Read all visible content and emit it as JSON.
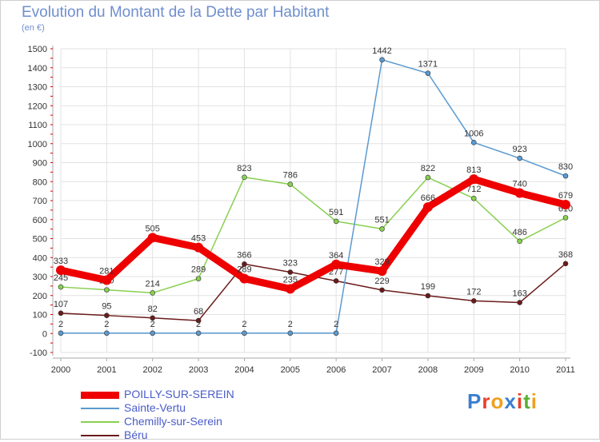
{
  "header": {
    "title": "Evolution du Montant de la Dette par Habitant",
    "subtitle": "(en €)"
  },
  "logo": {
    "text": "Proxiti"
  },
  "colors": {
    "axis": "#aaaaaa",
    "grid": "#e2e2e2",
    "tick_text": "#333333",
    "label_text": "#333333",
    "tick_marks": "#e00000"
  },
  "chart_data": {
    "type": "line",
    "x": [
      "2000",
      "2001",
      "2002",
      "2003",
      "2004",
      "2005",
      "2006",
      "2007",
      "2008",
      "2009",
      "2010",
      "2011"
    ],
    "ylim": [
      -100,
      1500
    ],
    "yticks": [
      -100,
      0,
      100,
      200,
      300,
      400,
      500,
      600,
      700,
      800,
      900,
      1000,
      1100,
      1200,
      1300,
      1400,
      1500
    ],
    "grid": true,
    "legend_position": "bottom-left",
    "series": [
      {
        "name": "Béru",
        "color": "#6b1a1a",
        "values": [
          107,
          95,
          82,
          68,
          366,
          323,
          277,
          229,
          199,
          172,
          163,
          368
        ]
      },
      {
        "name": "Chemilly-sur-Serein",
        "color": "#88d050",
        "values": [
          245,
          230,
          214,
          289,
          823,
          786,
          591,
          551,
          822,
          712,
          486,
          610
        ]
      },
      {
        "name": "Sainte-Vertu",
        "color": "#5a9ad0",
        "values": [
          2,
          2,
          2,
          2,
          2,
          2,
          2,
          1442,
          1371,
          1006,
          923,
          830
        ]
      },
      {
        "name": "POILLY-SUR-SEREIN",
        "color": "#ee0000",
        "values": [
          333,
          281,
          505,
          453,
          289,
          235,
          364,
          329,
          666,
          813,
          740,
          679
        ]
      }
    ],
    "legend": [
      "POILLY-SUR-SEREIN",
      "Sainte-Vertu",
      "Chemilly-sur-Serein",
      "Béru"
    ]
  }
}
